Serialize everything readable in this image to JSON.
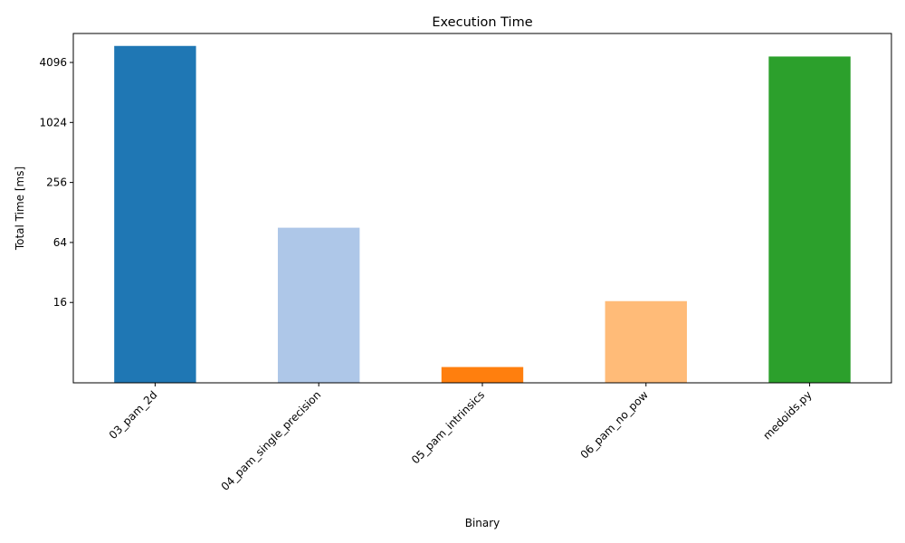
{
  "chart_data": {
    "type": "bar",
    "title": "Execution Time",
    "xlabel": "Binary",
    "ylabel": "Total Time [ms]",
    "yscale": "log2",
    "ylim": [
      2.5,
      8000
    ],
    "yticks": [
      16,
      64,
      256,
      1024,
      4096
    ],
    "ytick_labels": [
      "16",
      "64",
      "256",
      "1024",
      "4096"
    ],
    "categories": [
      "03_pam_2d",
      "04_pam_single_precision",
      "05_pam_intrinsics",
      "06_pam_no_pow",
      "medoids.py"
    ],
    "values": [
      6000,
      90,
      3.6,
      16.5,
      4700
    ],
    "colors": [
      "#1f77b4",
      "#aec7e8",
      "#ff7f0e",
      "#ffbb78",
      "#2ca02c"
    ],
    "grid": false,
    "legend": "none"
  }
}
